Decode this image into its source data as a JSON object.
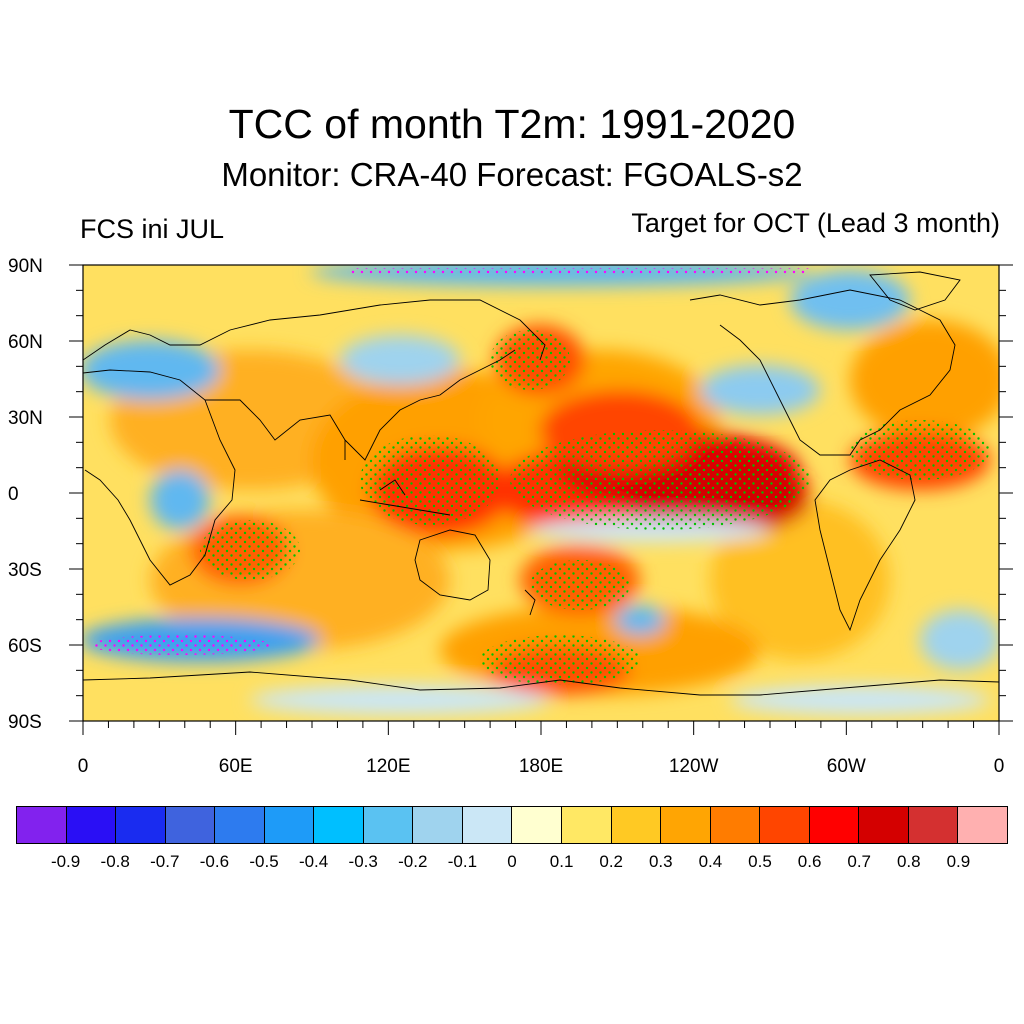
{
  "header": {
    "title": "TCC of month T2m: 1991-2020",
    "subtitle": "Monitor: CRA-40   Forecast: FGOALS-s2",
    "left_label": "FCS ini JUL",
    "right_label": "Target for OCT (Lead 3 month)"
  },
  "map": {
    "projection": "cylindrical equidistant",
    "lat_range": [
      -90,
      90
    ],
    "lon_range": [
      0,
      360
    ],
    "lat_ticks": [
      "90N",
      "60N",
      "30N",
      "0",
      "30S",
      "60S",
      "90S"
    ],
    "lon_ticks": [
      "0",
      "60E",
      "120E",
      "180E",
      "120W",
      "60W",
      "0"
    ],
    "stipple_color": "#00c000",
    "coastline_color": "#000000"
  },
  "colorbar": {
    "colors": [
      "#8222ee",
      "#2a0ff5",
      "#1a2cf0",
      "#3f63de",
      "#2d7bef",
      "#1e9bf8",
      "#00bfff",
      "#5ac2f2",
      "#9fd3ee",
      "#cbe7f6",
      "#ffffd0",
      "#ffe864",
      "#ffc923",
      "#ffa503",
      "#ff7c00",
      "#ff4500",
      "#ff0000",
      "#d40000",
      "#d43030",
      "#ffb0b0"
    ],
    "labels": [
      "-0.9",
      "-0.8",
      "-0.7",
      "-0.6",
      "-0.5",
      "-0.4",
      "-0.3",
      "-0.2",
      "-0.1",
      "0",
      "0.1",
      "0.2",
      "0.3",
      "0.4",
      "0.5",
      "0.6",
      "0.7",
      "0.8",
      "0.9"
    ]
  }
}
